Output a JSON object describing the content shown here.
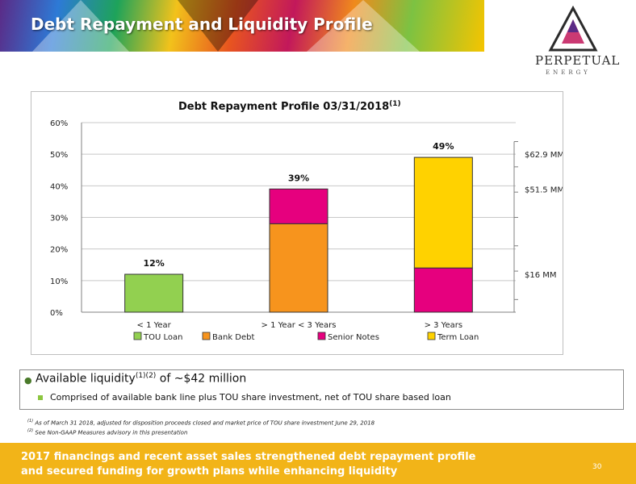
{
  "header": {
    "title": "Debt Repayment and Liquidity Profile",
    "logo_name": "PERPETUAL",
    "logo_sub": "ENERGY"
  },
  "chart_data": {
    "type": "bar",
    "stacked": true,
    "title": "Debt Repayment Profile 03/31/2018",
    "title_superscript": "(1)",
    "categories": [
      "< 1 Year",
      "> 1 Year < 3 Years",
      "> 3 Years"
    ],
    "series": [
      {
        "name": "TOU Loan",
        "color": "#92d050",
        "values": [
          12,
          0,
          0
        ]
      },
      {
        "name": "Bank Debt",
        "color": "#f7941d",
        "values": [
          0,
          28,
          0
        ]
      },
      {
        "name": "Senior Notes",
        "color": "#e6007e",
        "values": [
          0,
          11,
          14
        ]
      },
      {
        "name": "Term Loan",
        "color": "#ffd200",
        "values": [
          0,
          0,
          35
        ]
      }
    ],
    "totals_labels": [
      "12%",
      "39%",
      "49%"
    ],
    "ylim": [
      0,
      60
    ],
    "yticks": [
      "0%",
      "10%",
      "20%",
      "30%",
      "40%",
      "50%",
      "60%"
    ],
    "grid": true,
    "legend_position": "bottom",
    "annotations": [
      {
        "text": "$62.9 MM",
        "value": 50
      },
      {
        "text": "$51.5 MM",
        "value": 39
      },
      {
        "text": "$16 MM",
        "value": 12
      }
    ]
  },
  "liquidity": {
    "main_prefix": "Available liquidity",
    "main_sup": "(1)(2)",
    "main_suffix": " of ~$42 million",
    "sub": "Comprised of available bank line plus TOU share investment, net of TOU share based loan"
  },
  "footnotes": [
    {
      "sup": "(1)",
      "text": "As of March 31 2018, adjusted for disposition proceeds closed and market price of TOU share investment June 29, 2018"
    },
    {
      "sup": "(2)",
      "text": "See Non-GAAP Measures advisory in this presentation"
    }
  ],
  "bottom": {
    "text_line1": "2017 financings and recent asset sales strengthened debt repayment profile",
    "text_line2": "and secured funding for growth plans while enhancing liquidity",
    "page_number": "30"
  }
}
